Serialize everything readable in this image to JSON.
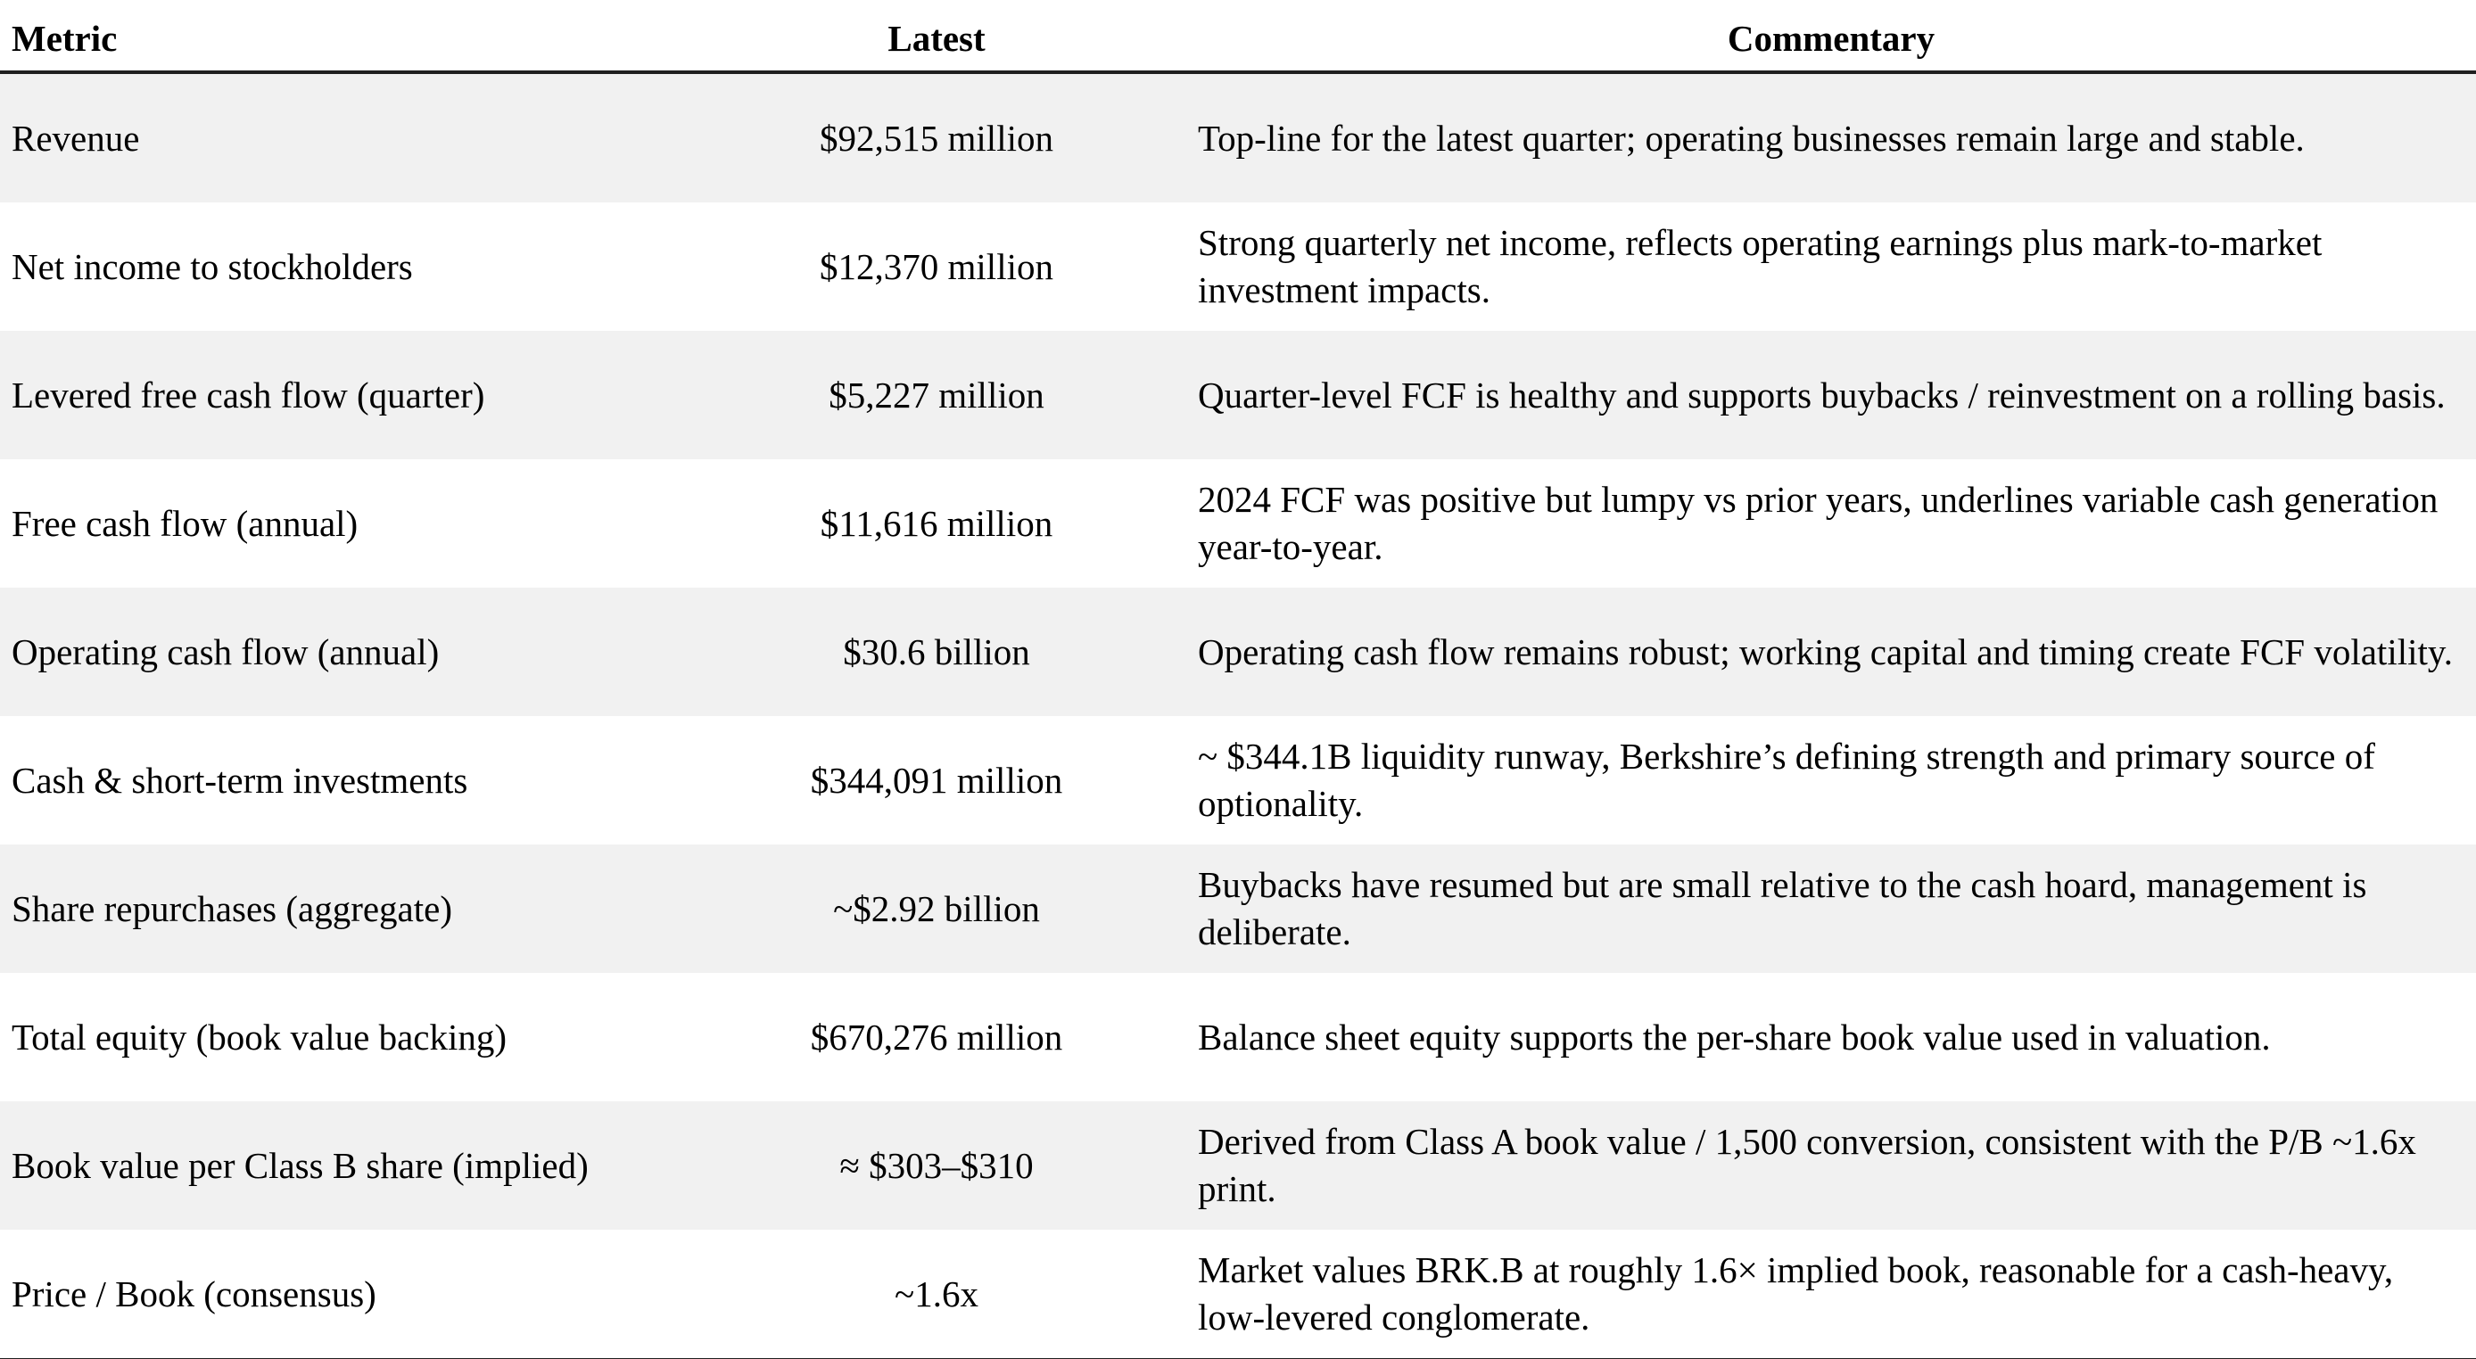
{
  "table": {
    "columns": [
      {
        "key": "metric",
        "label": "Metric"
      },
      {
        "key": "latest",
        "label": "Latest"
      },
      {
        "key": "commentary",
        "label": "Commentary"
      }
    ],
    "rows": [
      {
        "metric": "Revenue",
        "latest": "$92,515 million",
        "commentary": "Top-line for the latest quarter; operating businesses remain large and stable."
      },
      {
        "metric": "Net income to stockholders",
        "latest": "$12,370 million",
        "commentary": "Strong quarterly net income, reflects operating earnings plus mark-to-market investment impacts."
      },
      {
        "metric": "Levered free cash flow (quarter)",
        "latest": "$5,227 million",
        "commentary": "Quarter-level FCF is healthy and supports buybacks / reinvestment on a rolling basis."
      },
      {
        "metric": "Free cash flow (annual)",
        "latest": "$11,616 million",
        "commentary": "2024 FCF was positive but lumpy vs prior years, underlines variable cash generation year-to-year."
      },
      {
        "metric": "Operating cash flow (annual)",
        "latest": "$30.6 billion",
        "commentary": "Operating cash flow remains robust; working capital and timing create FCF volatility."
      },
      {
        "metric": "Cash & short-term investments",
        "latest": "$344,091 million",
        "commentary": "~ $344.1B liquidity runway, Berkshire’s defining strength and primary source of optionality."
      },
      {
        "metric": "Share repurchases (aggregate)",
        "latest": "~$2.92 billion",
        "commentary": "Buybacks have resumed but are small relative to the cash hoard, management is deliberate."
      },
      {
        "metric": "Total equity (book value backing)",
        "latest": "$670,276 million",
        "commentary": "Balance sheet equity supports the per-share book value used in valuation."
      },
      {
        "metric": "Book value per Class B share (implied)",
        "latest": "≈ $303–$310",
        "commentary": "Derived from Class A book value / 1,500 conversion, consistent with the P/B ~1.6x print."
      },
      {
        "metric": "Price / Book (consensus)",
        "latest": "~1.6x",
        "commentary": "Market values BRK.B at roughly 1.6× implied book, reasonable for a cash-heavy, low-levered conglomerate."
      }
    ]
  },
  "style": {
    "stripe_color": "#f1f1f1",
    "rule_color": "#1f1f1f",
    "background_color": "#ffffff"
  }
}
